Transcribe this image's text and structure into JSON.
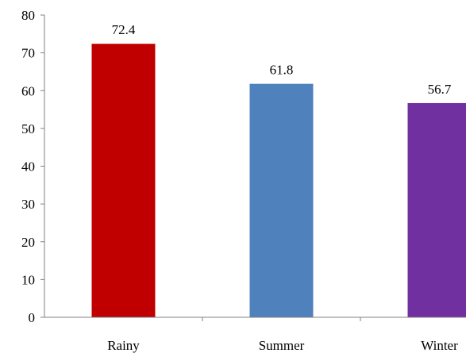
{
  "chart_data": {
    "type": "bar",
    "categories": [
      "Rainy",
      "Summer",
      "Winter"
    ],
    "values": [
      72.4,
      61.8,
      56.7
    ],
    "data_labels": [
      "72.4",
      "61.8",
      "56.7"
    ],
    "bar_colors": [
      "#c00000",
      "#4f81bd",
      "#7030a0"
    ],
    "ylim": [
      0,
      80
    ],
    "yticks": [
      0,
      10,
      20,
      30,
      40,
      50,
      60,
      70,
      80
    ],
    "grid": false,
    "legend": "none"
  }
}
